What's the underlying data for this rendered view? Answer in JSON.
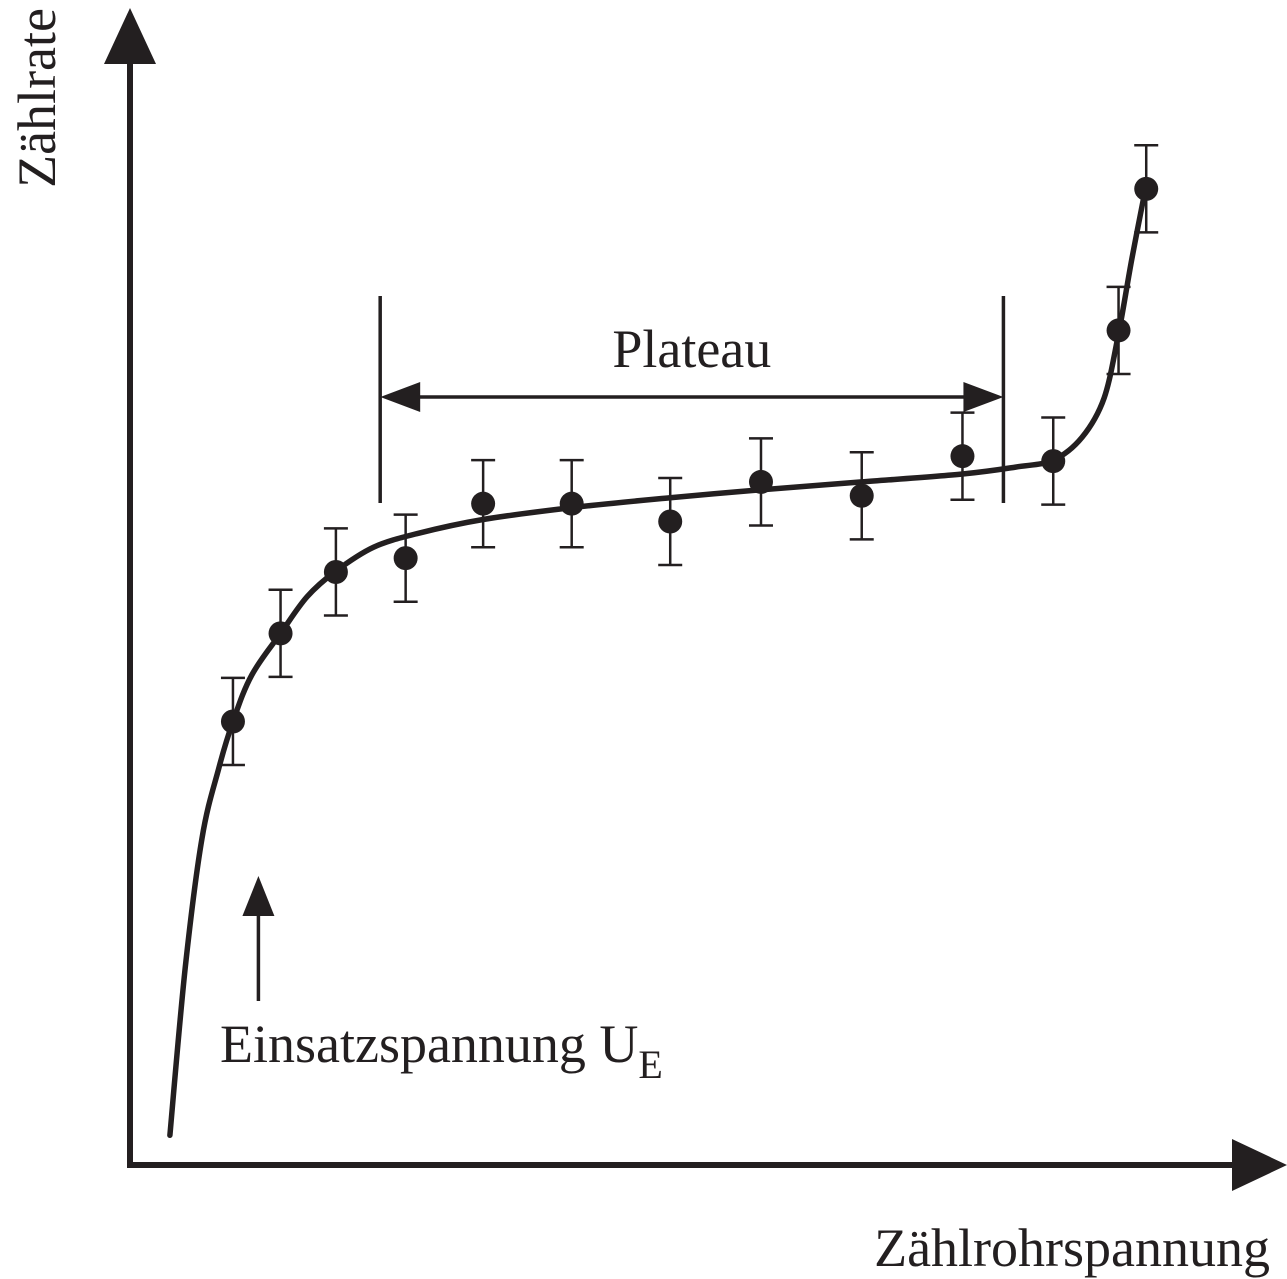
{
  "chart_data": {
    "type": "scatter",
    "title": "",
    "xlabel": "Zählrohrspannung",
    "ylabel": "Zählrate",
    "grid": false,
    "legend": "none",
    "xlim": [
      0,
      100
    ],
    "ylim": [
      0,
      100
    ],
    "points": [
      {
        "x": 9.3,
        "y": 44.8,
        "err": 4.4
      },
      {
        "x": 13.6,
        "y": 53.7,
        "err": 4.4
      },
      {
        "x": 18.6,
        "y": 59.9,
        "err": 4.4
      },
      {
        "x": 24.9,
        "y": 61.3,
        "err": 4.4
      },
      {
        "x": 31.9,
        "y": 66.8,
        "err": 4.4
      },
      {
        "x": 39.9,
        "y": 66.8,
        "err": 4.4
      },
      {
        "x": 48.8,
        "y": 65.0,
        "err": 4.4
      },
      {
        "x": 57.0,
        "y": 69.0,
        "err": 4.4
      },
      {
        "x": 66.1,
        "y": 67.6,
        "err": 4.4
      },
      {
        "x": 75.2,
        "y": 71.6,
        "err": 4.4
      },
      {
        "x": 83.4,
        "y": 71.1,
        "err": 4.4
      },
      {
        "x": 89.3,
        "y": 84.3,
        "err": 4.4
      },
      {
        "x": 91.8,
        "y": 98.6,
        "err": 4.4
      }
    ],
    "fit_curve": [
      [
        3.6,
        3.0
      ],
      [
        5.0,
        20.0
      ],
      [
        6.5,
        33.0
      ],
      [
        8.0,
        40.0
      ],
      [
        9.3,
        44.8
      ],
      [
        11.0,
        49.5
      ],
      [
        13.6,
        53.7
      ],
      [
        16.0,
        57.4
      ],
      [
        18.6,
        60.0
      ],
      [
        22.0,
        62.4
      ],
      [
        26.0,
        63.8
      ],
      [
        31.9,
        65.2
      ],
      [
        39.9,
        66.4
      ],
      [
        48.8,
        67.4
      ],
      [
        57.0,
        68.2
      ],
      [
        66.1,
        69.0
      ],
      [
        75.2,
        69.8
      ],
      [
        80.0,
        70.5
      ],
      [
        83.4,
        71.2
      ],
      [
        86.0,
        73.5
      ],
      [
        88.0,
        77.5
      ],
      [
        89.3,
        84.0
      ],
      [
        90.5,
        91.5
      ],
      [
        91.8,
        99.0
      ]
    ],
    "annotations": [
      {
        "id": "plateau",
        "text": "Plateau",
        "x_start": 22.6,
        "x_end": 78.9
      },
      {
        "id": "onset",
        "text": "Einsatzspannung U",
        "subscript": "E",
        "x": 11.6
      }
    ]
  }
}
